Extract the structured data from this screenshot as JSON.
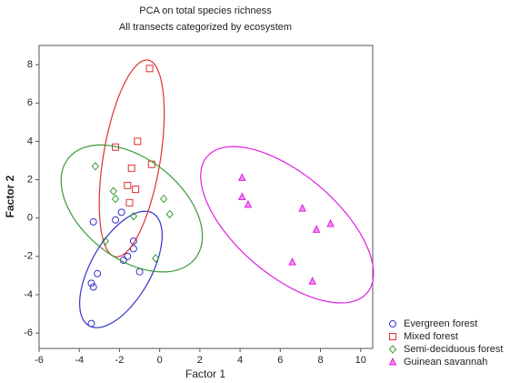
{
  "chart_data": {
    "type": "scatter",
    "title": "PCA on total species richness",
    "subtitle": "All transects categorized by ecosystem",
    "x_label": "Factor 1",
    "y_label": "Factor 2",
    "xlim": [
      -6,
      10.6
    ],
    "ylim": [
      -6.8,
      9
    ],
    "xticks": [
      -6,
      -4,
      -2,
      0,
      2,
      4,
      6,
      8,
      10
    ],
    "yticks": [
      -6,
      -4,
      -2,
      0,
      2,
      4,
      6,
      8
    ],
    "grid": false,
    "legend": "bottom-right",
    "series": [
      {
        "name": "Evergreen forest",
        "color": "#3333cc",
        "marker": "circle",
        "x": [
          -3.3,
          -3.1,
          -3.4,
          -3.3,
          -3.4,
          -2.2,
          -1.9,
          -1.3,
          -1.3,
          -1.6,
          -1.8,
          -1.0
        ],
        "values": [
          -0.2,
          -2.9,
          -3.4,
          -3.6,
          -5.5,
          -0.1,
          0.3,
          -1.2,
          -1.6,
          -2.0,
          -2.2,
          -2.8
        ],
        "ellipse": {
          "center": [
            -1.93,
            -2.68
          ],
          "axes": [
            [
              1.58,
              2.94
            ],
            [
              1.31,
              -0.76
            ]
          ]
        }
      },
      {
        "name": "Mixed forest",
        "color": "#e03030",
        "marker": "square",
        "x": [
          -0.5,
          -2.2,
          -1.1,
          -0.4,
          -1.4,
          -1.6,
          -1.2,
          -1.5
        ],
        "values": [
          7.8,
          3.7,
          4.0,
          2.8,
          2.6,
          1.7,
          1.5,
          0.8
        ],
        "ellipse": {
          "center": [
            -1.39,
            3.11
          ],
          "axes": [
            [
              0.81,
              5.13
            ],
            [
              1.4,
              -0.24
            ]
          ]
        }
      },
      {
        "name": "Semi-deciduous forest",
        "color": "#3a9a3a",
        "marker": "diamond",
        "x": [
          -3.2,
          -2.3,
          -2.2,
          -1.3,
          0.2,
          0.5,
          -0.2,
          -2.7
        ],
        "values": [
          2.7,
          1.4,
          1.0,
          0.1,
          1.0,
          0.2,
          -2.1,
          -1.2
        ],
        "ellipse": {
          "center": [
            -1.39,
            0.5
          ],
          "axes": [
            [
              3.16,
              -2.61
            ],
            [
              1.54,
              2.04
            ]
          ]
        }
      },
      {
        "name": "Guinean savannah",
        "color": "#e020e0",
        "marker": "triangle",
        "x": [
          4.1,
          4.1,
          4.4,
          7.1,
          7.8,
          8.5,
          6.6,
          7.6
        ],
        "values": [
          2.1,
          1.1,
          0.7,
          0.5,
          -0.6,
          -0.3,
          -2.3,
          -3.3
        ],
        "ellipse": {
          "center": [
            6.34,
            -0.35
          ],
          "axes": [
            [
              3.98,
              -3.56
            ],
            [
              1.63,
              1.99
            ]
          ]
        }
      }
    ]
  }
}
